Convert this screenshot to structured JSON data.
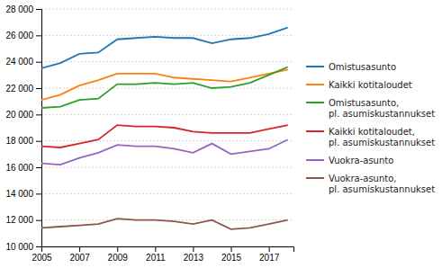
{
  "chart_data": {
    "type": "line",
    "x": [
      2005,
      2006,
      2007,
      2008,
      2009,
      2010,
      2011,
      2012,
      2013,
      2014,
      2015,
      2016,
      2017,
      2018
    ],
    "series": [
      {
        "name": "Omistusasunto",
        "values": [
          23500,
          23900,
          24600,
          24700,
          25700,
          25800,
          25900,
          25800,
          25800,
          25400,
          25700,
          25800,
          26100,
          26600
        ]
      },
      {
        "name": "Kaikki kotitaloudet",
        "values": [
          21100,
          21500,
          22200,
          22600,
          23100,
          23100,
          23100,
          22800,
          22700,
          22600,
          22500,
          22800,
          23100,
          23400
        ]
      },
      {
        "name": "Omistusasunto,\npl. asumiskustannukset",
        "values": [
          20500,
          20600,
          21100,
          21200,
          22300,
          22300,
          22400,
          22300,
          22400,
          22000,
          22100,
          22400,
          23000,
          23600
        ]
      },
      {
        "name": "Kaikki kotitaloudet,\npl. asumiskustannukset",
        "values": [
          17600,
          17500,
          17800,
          18100,
          19200,
          19100,
          19100,
          19000,
          18700,
          18600,
          18600,
          18600,
          18900,
          19200
        ]
      },
      {
        "name": "Vuokra-asunto",
        "values": [
          16300,
          16200,
          16700,
          17100,
          17700,
          17600,
          17600,
          17400,
          17100,
          17800,
          17000,
          17200,
          17400,
          18100
        ]
      },
      {
        "name": "Vuokra-asunto,\npl. asumiskustannukset",
        "values": [
          11400,
          11500,
          11600,
          11700,
          12100,
          12000,
          12000,
          11900,
          11700,
          12000,
          11300,
          11400,
          11700,
          12000
        ]
      }
    ],
    "xlim": [
      2005,
      2018.3
    ],
    "xticks": [
      2005,
      2007,
      2009,
      2011,
      2013,
      2015,
      2017
    ],
    "ylim": [
      10000,
      28000
    ],
    "yticks": [
      {
        "value": 10000,
        "label": "10 000"
      },
      {
        "value": 12000,
        "label": "12 000"
      },
      {
        "value": 14000,
        "label": "14 000"
      },
      {
        "value": 16000,
        "label": "16 000"
      },
      {
        "value": 18000,
        "label": "18 000"
      },
      {
        "value": 20000,
        "label": "20 000"
      },
      {
        "value": 22000,
        "label": "22 000"
      },
      {
        "value": 24000,
        "label": "24 000"
      },
      {
        "value": 26000,
        "label": "26 000"
      },
      {
        "value": 28000,
        "label": "28 000"
      }
    ],
    "grid": true,
    "legend": "right"
  }
}
